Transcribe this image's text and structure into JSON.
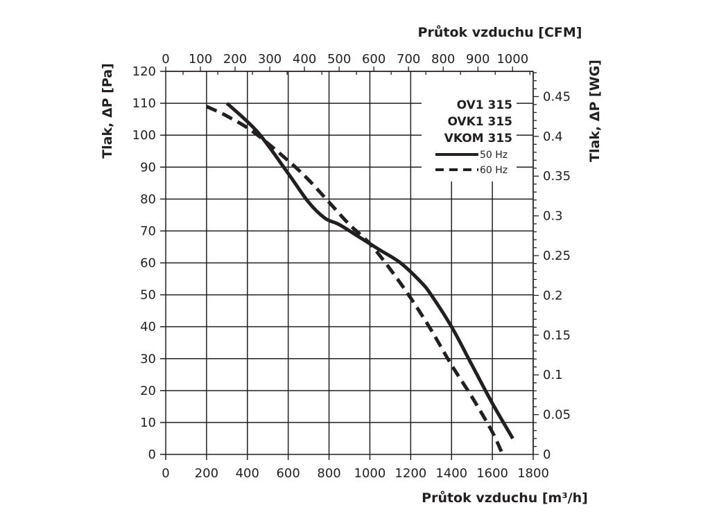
{
  "chart_data": {
    "type": "line",
    "title": "",
    "xlabel": "Průtok vzduchu [m³/h]",
    "xlabel_top": "Průtok vzduchu [CFM]",
    "ylabel": "Tlak, ΔP [Pa]",
    "ylabel_right": "Tlak, ΔP [WG]",
    "xlim": [
      0,
      1800
    ],
    "ylim": [
      0,
      120
    ],
    "x_ticks": [
      0,
      200,
      400,
      600,
      800,
      1000,
      1200,
      1400,
      1600,
      1800
    ],
    "y_ticks": [
      0,
      10,
      20,
      30,
      40,
      50,
      60,
      70,
      80,
      90,
      100,
      110,
      120
    ],
    "x_top_ticks": [
      0,
      100,
      200,
      300,
      400,
      500,
      600,
      700,
      800,
      900,
      1000
    ],
    "y_right_ticks": [
      "0",
      "0.05",
      "0.1",
      "0.15",
      "0.2",
      "0.25",
      "0.3",
      "0.35",
      "0.4",
      "0.45"
    ],
    "grid": true,
    "legend_title": [
      "OV1 315",
      "OVK1 315",
      "VKOM 315"
    ],
    "legend_placement": "top-right",
    "series": [
      {
        "name": "50 Hz",
        "style": "solid",
        "x": [
          300,
          450,
          600,
          700,
          780,
          850,
          950,
          1050,
          1150,
          1250,
          1300,
          1400,
          1500,
          1600,
          1700
        ],
        "y": [
          110,
          101,
          88,
          79,
          74,
          72,
          68,
          64,
          60,
          54,
          50,
          40,
          28,
          16,
          5
        ]
      },
      {
        "name": "60 Hz",
        "style": "dashed",
        "x": [
          200,
          300,
          430,
          600,
          700,
          800,
          900,
          1000,
          1100,
          1200,
          1300,
          1400,
          1500,
          1600,
          1650
        ],
        "y": [
          109,
          106,
          101,
          92,
          86,
          79,
          72,
          66,
          58,
          49,
          39,
          28,
          18,
          7,
          0
        ]
      }
    ]
  }
}
